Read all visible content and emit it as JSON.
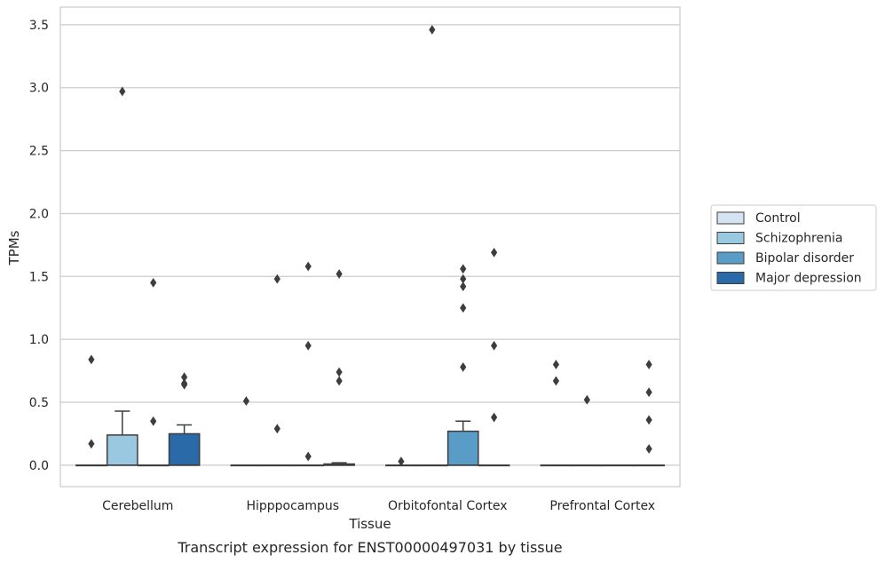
{
  "chart_data": {
    "type": "box",
    "title": "",
    "caption": "Transcript expression for ENST00000497031 by tissue",
    "xlabel": "Tissue",
    "ylabel": "TPMs",
    "ylim": [
      -0.17,
      3.64
    ],
    "yticks": [
      "0.0",
      "0.5",
      "1.0",
      "1.5",
      "2.0",
      "2.5",
      "3.0",
      "3.5"
    ],
    "ytick_values": [
      0,
      0.5,
      1.0,
      1.5,
      2.0,
      2.5,
      3.0,
      3.5
    ],
    "grid": "horizontal",
    "legend_position": "right",
    "categories": [
      "Cerebellum",
      "Hipppocampus",
      "Orbitofontal Cortex",
      "Prefrontal Cortex"
    ],
    "series": [
      {
        "name": "Control",
        "color": "#d4e4f2",
        "boxes": [
          {
            "q1": 0,
            "median": 0,
            "q3": 0,
            "whisker_low": 0,
            "whisker_high": 0,
            "outliers": [
              0.84,
              0.17
            ]
          },
          {
            "q1": 0,
            "median": 0,
            "q3": 0,
            "whisker_low": 0,
            "whisker_high": 0,
            "outliers": [
              0.51
            ]
          },
          {
            "q1": 0,
            "median": 0,
            "q3": 0,
            "whisker_low": 0,
            "whisker_high": 0,
            "outliers": [
              0.03
            ]
          },
          {
            "q1": 0,
            "median": 0,
            "q3": 0,
            "whisker_low": 0,
            "whisker_high": 0,
            "outliers": [
              0.8,
              0.67
            ]
          }
        ]
      },
      {
        "name": "Schizophrenia",
        "color": "#9ac8e0",
        "boxes": [
          {
            "q1": 0,
            "median": 0,
            "q3": 0.24,
            "whisker_low": 0,
            "whisker_high": 0.43,
            "outliers": [
              2.97
            ]
          },
          {
            "q1": 0,
            "median": 0,
            "q3": 0,
            "whisker_low": 0,
            "whisker_high": 0,
            "outliers": [
              1.48,
              0.29
            ]
          },
          {
            "q1": 0,
            "median": 0,
            "q3": 0,
            "whisker_low": 0,
            "whisker_high": 0,
            "outliers": [
              3.46
            ]
          },
          {
            "q1": 0,
            "median": 0,
            "q3": 0,
            "whisker_low": 0,
            "whisker_high": 0,
            "outliers": [
              0.52
            ]
          }
        ]
      },
      {
        "name": "Bipolar disorder",
        "color": "#5a9cc8",
        "boxes": [
          {
            "q1": 0,
            "median": 0,
            "q3": 0,
            "whisker_low": 0,
            "whisker_high": 0,
            "outliers": [
              1.45,
              0.35
            ]
          },
          {
            "q1": 0,
            "median": 0,
            "q3": 0,
            "whisker_low": 0,
            "whisker_high": 0,
            "outliers": [
              1.58,
              0.95,
              0.07
            ]
          },
          {
            "q1": 0,
            "median": 0,
            "q3": 0.27,
            "whisker_low": 0,
            "whisker_high": 0.35,
            "outliers": [
              1.56,
              1.48,
              1.42,
              1.25,
              0.78
            ]
          },
          {
            "q1": 0,
            "median": 0,
            "q3": 0,
            "whisker_low": 0,
            "whisker_high": 0,
            "outliers": []
          }
        ]
      },
      {
        "name": "Major depression",
        "color": "#2a6aa8",
        "boxes": [
          {
            "q1": 0,
            "median": 0,
            "q3": 0.25,
            "whisker_low": 0,
            "whisker_high": 0.32,
            "outliers": [
              0.7,
              0.65,
              0.64
            ]
          },
          {
            "q1": 0,
            "median": 0,
            "q3": 0.01,
            "whisker_low": 0,
            "whisker_high": 0.02,
            "outliers": [
              1.52,
              0.74,
              0.67
            ]
          },
          {
            "q1": 0,
            "median": 0,
            "q3": 0,
            "whisker_low": 0,
            "whisker_high": 0,
            "outliers": [
              1.69,
              0.95,
              0.38
            ]
          },
          {
            "q1": 0,
            "median": 0,
            "q3": 0,
            "whisker_low": 0,
            "whisker_high": 0,
            "outliers": [
              0.8,
              0.58,
              0.36,
              0.13
            ]
          }
        ]
      }
    ]
  }
}
